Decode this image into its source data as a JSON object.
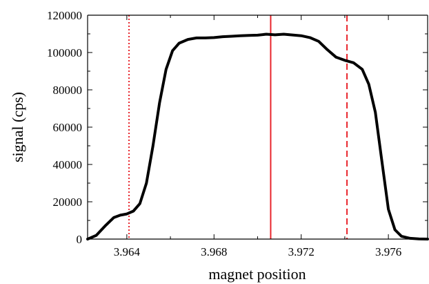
{
  "chart_data": {
    "type": "line",
    "title": "",
    "xlabel": "magnet position",
    "ylabel": "signal (cps)",
    "xlim": [
      3.9622,
      3.9778
    ],
    "ylim": [
      0,
      120000
    ],
    "x_ticks": [
      3.964,
      3.968,
      3.972,
      3.976
    ],
    "x_tick_labels": [
      "3.964",
      "3.968",
      "3.972",
      "3.976"
    ],
    "y_ticks": [
      0,
      20000,
      40000,
      60000,
      80000,
      100000,
      120000
    ],
    "y_tick_labels": [
      "0",
      "20000",
      "40000",
      "60000",
      "80000",
      "100000",
      "120000"
    ],
    "grid": false,
    "series": [
      {
        "color": "#000000",
        "x": [
          3.9622,
          3.9626,
          3.963,
          3.9634,
          3.9637,
          3.964,
          3.9643,
          3.9646,
          3.9649,
          3.9652,
          3.9655,
          3.9658,
          3.9661,
          3.9664,
          3.9668,
          3.9672,
          3.9676,
          3.968,
          3.9684,
          3.9688,
          3.9692,
          3.9696,
          3.97,
          3.9704,
          3.9708,
          3.9712,
          3.9716,
          3.972,
          3.9724,
          3.9728,
          3.9732,
          3.9736,
          3.974,
          3.9744,
          3.9748,
          3.9751,
          3.9754,
          3.9757,
          3.976,
          3.9763,
          3.9766,
          3.977,
          3.9774,
          3.9778
        ],
        "y": [
          0,
          2000,
          7000,
          11500,
          12800,
          13500,
          15000,
          19000,
          30000,
          50000,
          73000,
          91000,
          101000,
          105000,
          107000,
          107800,
          107800,
          108000,
          108500,
          108700,
          109000,
          109200,
          109300,
          109800,
          109500,
          109800,
          109400,
          109000,
          108000,
          106000,
          101500,
          97500,
          95800,
          94500,
          91000,
          83000,
          68000,
          42000,
          16000,
          5000,
          1500,
          400,
          100,
          0
        ]
      }
    ],
    "vertical_lines": [
      {
        "x": 3.9641,
        "style": "dotted",
        "color": "#e8242b"
      },
      {
        "x": 3.9706,
        "style": "solid",
        "color": "#e8242b"
      },
      {
        "x": 3.9741,
        "style": "dashed",
        "color": "#e8242b"
      }
    ]
  }
}
